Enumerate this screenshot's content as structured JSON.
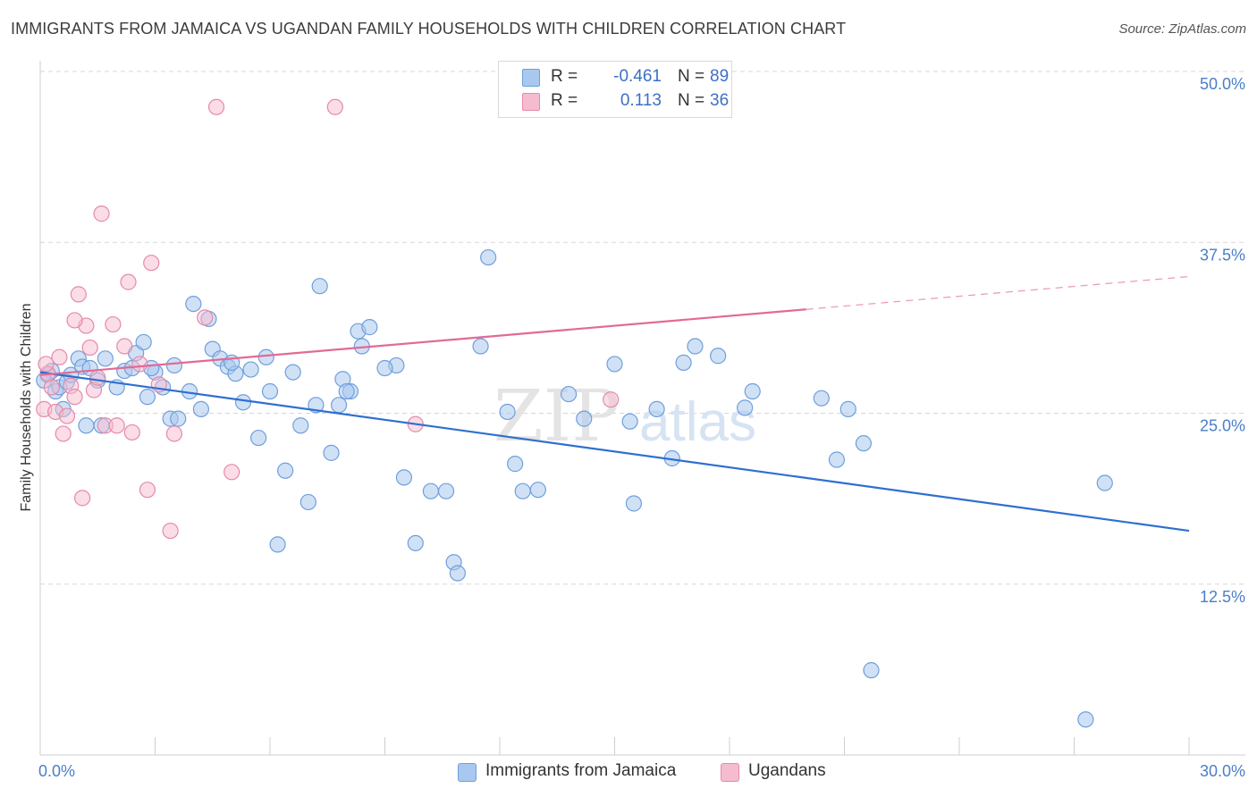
{
  "title": "IMMIGRANTS FROM JAMAICA VS UGANDAN FAMILY HOUSEHOLDS WITH CHILDREN CORRELATION CHART",
  "source": "Source: ZipAtlas.com",
  "watermark": {
    "zip": "ZIP",
    "atlas": "atlas"
  },
  "legend": {
    "r_label": "R =",
    "n_label": "N =",
    "series": [
      {
        "name": "Immigrants from Jamaica",
        "r": "-0.461",
        "n": "89"
      },
      {
        "name": "Ugandans",
        "r": "0.113",
        "n": "36"
      }
    ]
  },
  "colors": {
    "blue_fill": "#a9c8ef",
    "blue_stroke": "#6f9fdc",
    "blue_line": "#2f6fd0",
    "pink_fill": "#f5bcd0",
    "pink_stroke": "#e58aaa",
    "pink_line": "#e26a95",
    "tick_text": "#4a7fc8",
    "grid": "#d7d7d7"
  },
  "chart_data": {
    "type": "scatter",
    "title": "IMMIGRANTS FROM JAMAICA VS UGANDAN FAMILY HOUSEHOLDS WITH CHILDREN CORRELATION CHART",
    "xlabel": "",
    "ylabel": "Family Households with Children",
    "xlim": [
      0,
      30
    ],
    "ylim": [
      0,
      50
    ],
    "x_tick_labels": [
      "0.0%",
      "30.0%"
    ],
    "y_ticks": [
      12.5,
      25.0,
      37.5,
      50.0
    ],
    "y_tick_labels": [
      "12.5%",
      "25.0%",
      "37.5%",
      "50.0%"
    ],
    "grid": true,
    "legend_position": "top-center",
    "series": [
      {
        "name": "Immigrants from Jamaica",
        "color": "blue",
        "trend": {
          "x0": 0,
          "y0": 28.0,
          "x1": 30,
          "y1": 16.4,
          "dashed_from": null
        },
        "points": [
          [
            0.2,
            27.8
          ],
          [
            0.3,
            28.1
          ],
          [
            0.4,
            26.6
          ],
          [
            0.5,
            26.9
          ],
          [
            0.6,
            25.3
          ],
          [
            0.7,
            27.3
          ],
          [
            0.8,
            27.8
          ],
          [
            1.0,
            29.0
          ],
          [
            1.1,
            28.4
          ],
          [
            1.3,
            28.3
          ],
          [
            1.5,
            27.4
          ],
          [
            1.6,
            24.1
          ],
          [
            1.7,
            29.0
          ],
          [
            2.0,
            26.9
          ],
          [
            2.2,
            28.1
          ],
          [
            2.4,
            28.3
          ],
          [
            2.5,
            29.4
          ],
          [
            2.7,
            30.2
          ],
          [
            2.8,
            26.2
          ],
          [
            3.0,
            28.0
          ],
          [
            3.2,
            26.9
          ],
          [
            3.4,
            24.6
          ],
          [
            3.5,
            28.5
          ],
          [
            3.6,
            24.6
          ],
          [
            3.9,
            26.6
          ],
          [
            4.0,
            33.0
          ],
          [
            4.2,
            25.3
          ],
          [
            4.4,
            31.9
          ],
          [
            4.5,
            29.7
          ],
          [
            4.7,
            29.0
          ],
          [
            4.9,
            28.4
          ],
          [
            5.1,
            27.9
          ],
          [
            5.3,
            25.8
          ],
          [
            5.5,
            28.2
          ],
          [
            5.7,
            23.2
          ],
          [
            5.9,
            29.1
          ],
          [
            6.0,
            26.6
          ],
          [
            6.2,
            15.4
          ],
          [
            6.4,
            20.8
          ],
          [
            6.6,
            28.0
          ],
          [
            6.8,
            24.1
          ],
          [
            7.0,
            18.5
          ],
          [
            7.2,
            25.6
          ],
          [
            7.3,
            34.3
          ],
          [
            7.6,
            22.1
          ],
          [
            7.8,
            25.6
          ],
          [
            7.9,
            27.5
          ],
          [
            8.1,
            26.6
          ],
          [
            8.3,
            31.0
          ],
          [
            8.4,
            29.9
          ],
          [
            8.6,
            31.3
          ],
          [
            9.3,
            28.5
          ],
          [
            9.5,
            20.3
          ],
          [
            9.8,
            15.5
          ],
          [
            10.2,
            19.3
          ],
          [
            10.6,
            19.3
          ],
          [
            10.8,
            14.1
          ],
          [
            10.9,
            13.3
          ],
          [
            11.5,
            29.9
          ],
          [
            11.7,
            36.4
          ],
          [
            12.4,
            21.3
          ],
          [
            12.6,
            19.3
          ],
          [
            13.0,
            19.4
          ],
          [
            13.8,
            26.4
          ],
          [
            14.2,
            24.6
          ],
          [
            15.0,
            28.6
          ],
          [
            15.4,
            24.4
          ],
          [
            15.5,
            18.4
          ],
          [
            16.1,
            25.3
          ],
          [
            16.5,
            21.7
          ],
          [
            16.8,
            28.7
          ],
          [
            17.1,
            29.9
          ],
          [
            17.7,
            29.2
          ],
          [
            18.4,
            25.4
          ],
          [
            18.6,
            26.6
          ],
          [
            20.4,
            26.1
          ],
          [
            20.8,
            21.6
          ],
          [
            21.1,
            25.3
          ],
          [
            21.5,
            22.8
          ],
          [
            21.7,
            6.2
          ],
          [
            27.3,
            2.6
          ],
          [
            27.8,
            19.9
          ],
          [
            0.1,
            27.4
          ],
          [
            1.2,
            24.1
          ],
          [
            2.9,
            28.3
          ],
          [
            5.0,
            28.7
          ],
          [
            8.0,
            26.6
          ],
          [
            9.0,
            28.3
          ],
          [
            12.2,
            25.1
          ]
        ]
      },
      {
        "name": "Ugandans",
        "color": "pink",
        "trend": {
          "x0": 0,
          "y0": 27.8,
          "x1": 20.0,
          "y1": 32.6,
          "dashed_to": {
            "x": 30,
            "y": 35.0
          }
        },
        "points": [
          [
            0.1,
            25.3
          ],
          [
            0.2,
            27.9
          ],
          [
            0.3,
            26.9
          ],
          [
            0.4,
            25.1
          ],
          [
            0.5,
            29.1
          ],
          [
            0.6,
            23.5
          ],
          [
            0.7,
            24.8
          ],
          [
            0.8,
            27.0
          ],
          [
            0.9,
            26.2
          ],
          [
            1.0,
            33.7
          ],
          [
            1.1,
            18.8
          ],
          [
            1.2,
            31.4
          ],
          [
            1.3,
            29.8
          ],
          [
            1.4,
            26.7
          ],
          [
            1.5,
            27.6
          ],
          [
            1.6,
            39.6
          ],
          [
            1.7,
            24.1
          ],
          [
            1.9,
            31.5
          ],
          [
            2.0,
            24.1
          ],
          [
            2.3,
            34.6
          ],
          [
            2.4,
            23.6
          ],
          [
            2.6,
            28.6
          ],
          [
            2.8,
            19.4
          ],
          [
            2.9,
            36.0
          ],
          [
            3.1,
            27.1
          ],
          [
            3.4,
            16.4
          ],
          [
            3.5,
            23.5
          ],
          [
            4.3,
            32.0
          ],
          [
            4.6,
            47.4
          ],
          [
            5.0,
            20.7
          ],
          [
            7.7,
            47.4
          ],
          [
            9.8,
            24.2
          ],
          [
            14.9,
            26.0
          ],
          [
            0.15,
            28.6
          ],
          [
            0.9,
            31.8
          ],
          [
            2.2,
            29.9
          ]
        ]
      }
    ]
  }
}
